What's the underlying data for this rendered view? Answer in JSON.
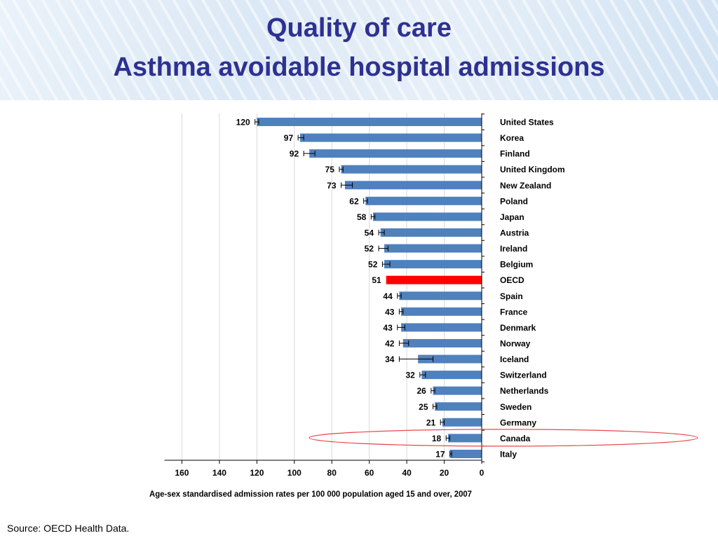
{
  "slide": {
    "title_line_1": "Quality of care",
    "title_line_2": "Asthma avoidable hospital admissions",
    "source": "Source: OECD Health Data."
  },
  "colors": {
    "title": "#2e3192",
    "bar": "#4f81bd",
    "highlight_bar": "#ff0000",
    "highlight_ellipse": "#e8474d"
  },
  "chart_data": {
    "type": "bar",
    "orientation": "horizontal",
    "xlabel": "Age-sex standardised admission rates per 100 000 population aged 15 and over, 2007",
    "xlim": [
      0,
      160
    ],
    "x_reversed": true,
    "xticks": [
      "160",
      "140",
      "120",
      "100",
      "80",
      "60",
      "40",
      "20",
      "0"
    ],
    "grid": "vertical",
    "categories": [
      "United States",
      "Korea",
      "Finland",
      "United Kingdom",
      "New Zealand",
      "Poland",
      "Japan",
      "Austria",
      "Ireland",
      "Belgium",
      "OECD",
      "Spain",
      "France",
      "Denmark",
      "Norway",
      "Iceland",
      "Switzerland",
      "Netherlands",
      "Sweden",
      "Germany",
      "Canada",
      "Italy"
    ],
    "values": [
      120,
      97,
      92,
      75,
      73,
      62,
      58,
      54,
      52,
      52,
      51,
      44,
      43,
      43,
      42,
      34,
      32,
      26,
      25,
      21,
      18,
      17
    ],
    "value_labels": [
      "120",
      "97",
      "92",
      "75",
      "73",
      "62",
      "58",
      "54",
      "52",
      "52",
      "51",
      "44",
      "43",
      "43",
      "42",
      "34",
      "32",
      "26",
      "25",
      "21",
      "18",
      "17"
    ],
    "error_bars": [
      [
        119,
        121
      ],
      [
        95,
        98
      ],
      [
        89,
        95
      ],
      [
        74,
        76
      ],
      [
        69,
        75
      ],
      [
        61,
        63
      ],
      [
        57,
        59
      ],
      [
        52,
        55
      ],
      [
        50,
        55
      ],
      [
        49,
        53
      ],
      null,
      [
        43,
        45
      ],
      [
        42,
        44
      ],
      [
        41,
        45
      ],
      [
        39,
        44
      ],
      [
        26,
        44
      ],
      [
        30,
        33
      ],
      [
        25,
        27
      ],
      [
        24,
        26
      ],
      [
        20,
        22
      ],
      [
        17,
        19
      ],
      [
        16,
        17
      ]
    ],
    "highlighted": [
      "OECD"
    ],
    "circled": [
      "Canada"
    ]
  }
}
